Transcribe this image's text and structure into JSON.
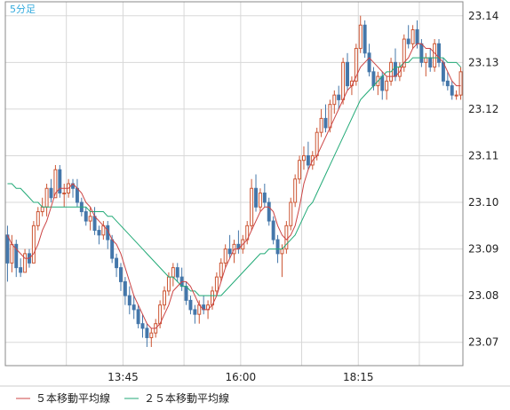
{
  "chart_data": {
    "type": "candlestick",
    "period_label": "5分足",
    "y_axis": {
      "ticks": [
        23.07,
        23.08,
        23.09,
        23.1,
        23.11,
        23.12,
        23.13,
        23.14
      ],
      "tick_labels": [
        "23.07",
        "23.08",
        "23.09",
        "23.10",
        "23.11",
        "23.12",
        "23.13",
        "23.14"
      ],
      "ylim": [
        23.065,
        23.143
      ]
    },
    "x_axis": {
      "time_labels": [
        "13:45",
        "16:00",
        "18:15"
      ],
      "label_bar_index": [
        27,
        54,
        81
      ],
      "bar_count": 105
    },
    "grid": true,
    "colors": {
      "up": "#cc5533",
      "down": "#4477aa",
      "ma5": "#cc4444",
      "ma25": "#22aa77",
      "grid": "#d8d8d8",
      "axis": "#888888",
      "period_label": "#33aadd"
    },
    "legend": {
      "placement": "bottom-left",
      "items": [
        {
          "label": "５本移動平均線",
          "color": "#cc4444"
        },
        {
          "label": "２５本移動平均線",
          "color": "#22aa77"
        }
      ]
    },
    "candles": [
      [
        23.093,
        23.095,
        23.083,
        23.087
      ],
      [
        23.087,
        23.093,
        23.085,
        23.091
      ],
      [
        23.091,
        23.092,
        23.084,
        23.086
      ],
      [
        23.086,
        23.088,
        23.084,
        23.085
      ],
      [
        23.085,
        23.09,
        23.085,
        23.089
      ],
      [
        23.089,
        23.09,
        23.086,
        23.087
      ],
      [
        23.087,
        23.096,
        23.087,
        23.095
      ],
      [
        23.095,
        23.099,
        23.094,
        23.098
      ],
      [
        23.098,
        23.101,
        23.097,
        23.099
      ],
      [
        23.099,
        23.104,
        23.097,
        23.103
      ],
      [
        23.103,
        23.105,
        23.1,
        23.101
      ],
      [
        23.101,
        23.108,
        23.101,
        23.107
      ],
      [
        23.107,
        23.108,
        23.101,
        23.102
      ],
      [
        23.102,
        23.104,
        23.099,
        23.102
      ],
      [
        23.102,
        23.105,
        23.101,
        23.104
      ],
      [
        23.104,
        23.105,
        23.101,
        23.103
      ],
      [
        23.103,
        23.105,
        23.099,
        23.1
      ],
      [
        23.1,
        23.101,
        23.097,
        23.098
      ],
      [
        23.098,
        23.099,
        23.095,
        23.096
      ],
      [
        23.096,
        23.099,
        23.094,
        23.097
      ],
      [
        23.097,
        23.099,
        23.093,
        23.094
      ],
      [
        23.094,
        23.095,
        23.091,
        23.093
      ],
      [
        23.093,
        23.096,
        23.092,
        23.095
      ],
      [
        23.095,
        23.096,
        23.09,
        23.092
      ],
      [
        23.092,
        23.093,
        23.087,
        23.088
      ],
      [
        23.088,
        23.089,
        23.084,
        23.086
      ],
      [
        23.086,
        23.087,
        23.081,
        23.083
      ],
      [
        23.083,
        23.084,
        23.078,
        23.08
      ],
      [
        23.08,
        23.082,
        23.076,
        23.078
      ],
      [
        23.078,
        23.08,
        23.075,
        23.077
      ],
      [
        23.077,
        23.078,
        23.073,
        23.074
      ],
      [
        23.074,
        23.076,
        23.071,
        23.073
      ],
      [
        23.073,
        23.074,
        23.069,
        23.071
      ],
      [
        23.071,
        23.073,
        23.069,
        23.072
      ],
      [
        23.072,
        23.075,
        23.071,
        23.074
      ],
      [
        23.074,
        23.079,
        23.073,
        23.078
      ],
      [
        23.078,
        23.082,
        23.077,
        23.081
      ],
      [
        23.081,
        23.085,
        23.08,
        23.084
      ],
      [
        23.084,
        23.087,
        23.082,
        23.086
      ],
      [
        23.086,
        23.087,
        23.083,
        23.084
      ],
      [
        23.084,
        23.086,
        23.081,
        23.082
      ],
      [
        23.082,
        23.083,
        23.078,
        23.079
      ],
      [
        23.079,
        23.08,
        23.076,
        23.077
      ],
      [
        23.077,
        23.078,
        23.074,
        23.076
      ],
      [
        23.076,
        23.079,
        23.074,
        23.078
      ],
      [
        23.078,
        23.08,
        23.076,
        23.077
      ],
      [
        23.077,
        23.079,
        23.075,
        23.078
      ],
      [
        23.078,
        23.082,
        23.077,
        23.081
      ],
      [
        23.081,
        23.085,
        23.08,
        23.084
      ],
      [
        23.084,
        23.088,
        23.083,
        23.087
      ],
      [
        23.087,
        23.091,
        23.086,
        23.09
      ],
      [
        23.09,
        23.093,
        23.088,
        23.089
      ],
      [
        23.089,
        23.092,
        23.087,
        23.091
      ],
      [
        23.091,
        23.094,
        23.089,
        23.09
      ],
      [
        23.09,
        23.093,
        23.089,
        23.092
      ],
      [
        23.092,
        23.096,
        23.091,
        23.095
      ],
      [
        23.095,
        23.105,
        23.094,
        23.103
      ],
      [
        23.103,
        23.106,
        23.098,
        23.099
      ],
      [
        23.099,
        23.103,
        23.098,
        23.102
      ],
      [
        23.102,
        23.104,
        23.099,
        23.1
      ],
      [
        23.1,
        23.101,
        23.095,
        23.096
      ],
      [
        23.096,
        23.097,
        23.091,
        23.092
      ],
      [
        23.092,
        23.093,
        23.087,
        23.089
      ],
      [
        23.089,
        23.091,
        23.084,
        23.09
      ],
      [
        23.09,
        23.096,
        23.089,
        23.095
      ],
      [
        23.095,
        23.101,
        23.094,
        23.1
      ],
      [
        23.1,
        23.106,
        23.099,
        23.105
      ],
      [
        23.105,
        23.11,
        23.104,
        23.109
      ],
      [
        23.109,
        23.112,
        23.107,
        23.11
      ],
      [
        23.11,
        23.113,
        23.107,
        23.108
      ],
      [
        23.108,
        23.111,
        23.107,
        23.11
      ],
      [
        23.11,
        23.116,
        23.109,
        23.115
      ],
      [
        23.115,
        23.12,
        23.114,
        23.118
      ],
      [
        23.118,
        23.121,
        23.115,
        23.116
      ],
      [
        23.116,
        23.122,
        23.115,
        23.121
      ],
      [
        23.121,
        23.124,
        23.119,
        23.123
      ],
      [
        23.123,
        23.125,
        23.12,
        23.122
      ],
      [
        23.122,
        23.131,
        23.121,
        23.13
      ],
      [
        23.13,
        23.132,
        23.124,
        23.125
      ],
      [
        23.125,
        23.127,
        23.123,
        23.126
      ],
      [
        23.126,
        23.134,
        23.125,
        23.133
      ],
      [
        23.133,
        23.14,
        23.132,
        23.138
      ],
      [
        23.138,
        23.139,
        23.131,
        23.132
      ],
      [
        23.132,
        23.134,
        23.127,
        23.128
      ],
      [
        23.128,
        23.129,
        23.124,
        23.125
      ],
      [
        23.125,
        23.128,
        23.123,
        23.127
      ],
      [
        23.127,
        23.128,
        23.122,
        23.124
      ],
      [
        23.124,
        23.127,
        23.122,
        23.126
      ],
      [
        23.126,
        23.131,
        23.125,
        23.13
      ],
      [
        23.13,
        23.133,
        23.126,
        23.127
      ],
      [
        23.127,
        23.13,
        23.126,
        23.129
      ],
      [
        23.129,
        23.136,
        23.128,
        23.135
      ],
      [
        23.135,
        23.138,
        23.133,
        23.134
      ],
      [
        23.134,
        23.138,
        23.133,
        23.137
      ],
      [
        23.137,
        23.139,
        23.133,
        23.134
      ],
      [
        23.134,
        23.135,
        23.129,
        23.13
      ],
      [
        23.13,
        23.132,
        23.127,
        23.131
      ],
      [
        23.131,
        23.133,
        23.128,
        23.129
      ],
      [
        23.129,
        23.135,
        23.128,
        23.134
      ],
      [
        23.134,
        23.135,
        23.129,
        23.13
      ],
      [
        23.13,
        23.131,
        23.125,
        23.126
      ],
      [
        23.126,
        23.128,
        23.124,
        23.125
      ],
      [
        23.125,
        23.126,
        23.122,
        23.123
      ],
      [
        23.123,
        23.124,
        23.122,
        23.123
      ],
      [
        23.123,
        23.129,
        23.122,
        23.128
      ]
    ],
    "ma5": [
      23.093,
      23.091,
      23.09,
      23.089,
      23.088,
      23.088,
      23.089,
      23.091,
      23.094,
      23.096,
      23.099,
      23.102,
      23.103,
      23.103,
      23.103,
      23.104,
      23.103,
      23.102,
      23.1,
      23.099,
      23.097,
      23.096,
      23.095,
      23.094,
      23.092,
      23.091,
      23.089,
      23.086,
      23.083,
      23.08,
      23.078,
      23.076,
      23.074,
      23.073,
      23.073,
      23.074,
      23.076,
      23.078,
      23.081,
      23.082,
      23.083,
      23.083,
      23.082,
      23.08,
      23.078,
      23.077,
      23.077,
      23.078,
      23.08,
      23.083,
      23.086,
      23.088,
      23.09,
      23.09,
      23.091,
      23.092,
      23.094,
      23.096,
      23.098,
      23.099,
      23.099,
      23.098,
      23.095,
      23.093,
      23.092,
      23.093,
      23.095,
      23.099,
      23.104,
      23.107,
      23.109,
      23.11,
      23.112,
      23.114,
      23.116,
      23.118,
      23.12,
      23.122,
      23.124,
      23.125,
      23.127,
      23.129,
      23.13,
      23.131,
      23.13,
      23.129,
      23.128,
      23.127,
      23.127,
      23.127,
      23.128,
      23.13,
      23.131,
      23.133,
      23.134,
      23.134,
      23.133,
      23.133,
      23.132,
      23.131,
      23.13,
      23.128,
      23.126,
      23.125,
      23.125
    ],
    "ma25": [
      23.104,
      23.104,
      23.103,
      23.103,
      23.102,
      23.101,
      23.1,
      23.1,
      23.099,
      23.099,
      23.099,
      23.099,
      23.099,
      23.099,
      23.099,
      23.099,
      23.099,
      23.099,
      23.099,
      23.098,
      23.098,
      23.098,
      23.098,
      23.097,
      23.097,
      23.096,
      23.095,
      23.094,
      23.093,
      23.092,
      23.091,
      23.09,
      23.089,
      23.088,
      23.087,
      23.086,
      23.085,
      23.084,
      23.084,
      23.083,
      23.082,
      23.082,
      23.081,
      23.081,
      23.08,
      23.08,
      23.08,
      23.08,
      23.08,
      23.08,
      23.081,
      23.082,
      23.083,
      23.084,
      23.085,
      23.086,
      23.087,
      23.088,
      23.089,
      23.089,
      23.09,
      23.09,
      23.09,
      23.09,
      23.091,
      23.092,
      23.093,
      23.095,
      23.097,
      23.099,
      23.1,
      23.102,
      23.104,
      23.106,
      23.108,
      23.11,
      23.112,
      23.114,
      23.116,
      23.118,
      23.12,
      23.122,
      23.123,
      23.124,
      23.125,
      23.126,
      23.127,
      23.128,
      23.128,
      23.129,
      23.129,
      23.13,
      23.13,
      23.131,
      23.131,
      23.131,
      23.131,
      23.131,
      23.131,
      23.131,
      23.131,
      23.13,
      23.13,
      23.13,
      23.129
    ]
  }
}
